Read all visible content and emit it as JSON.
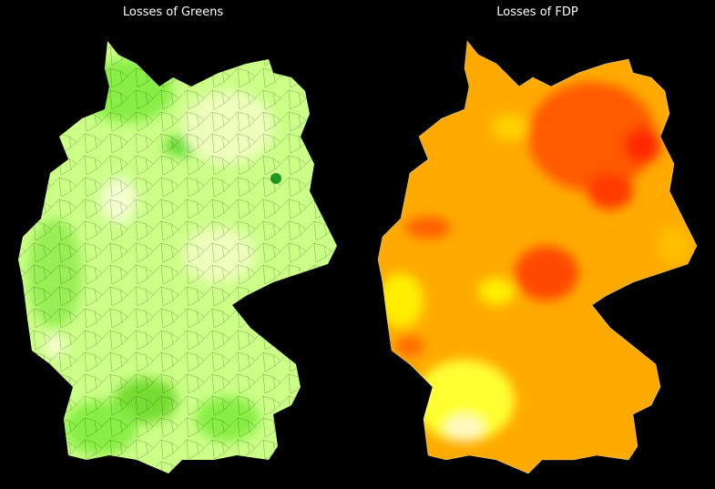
{
  "panels": [
    {
      "title": "Losses of Greens"
    },
    {
      "title": "Losses of FDP"
    }
  ]
}
